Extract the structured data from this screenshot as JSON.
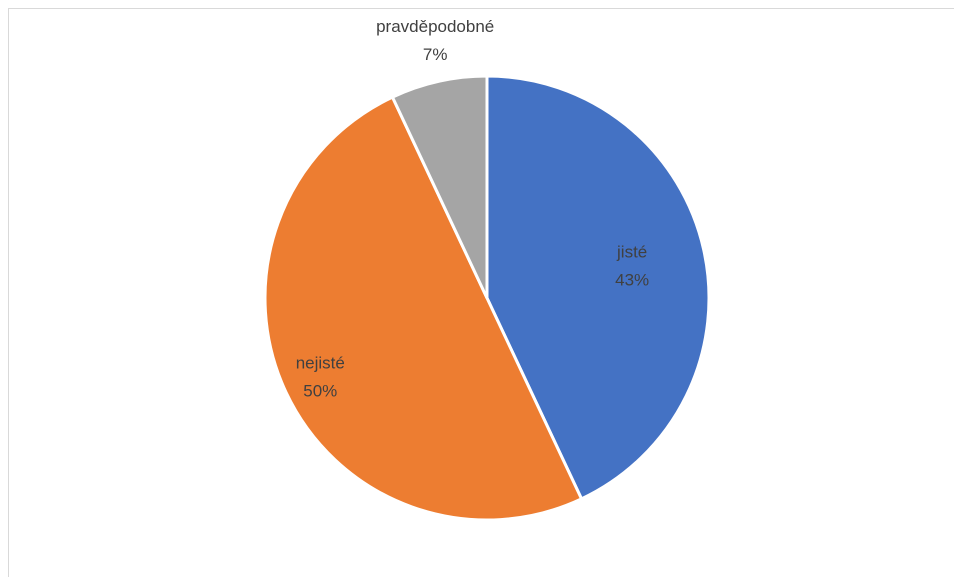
{
  "chart_data": {
    "type": "pie",
    "title": "",
    "slices": [
      {
        "label": "jisté",
        "percent_label": "43%",
        "value": 43,
        "color": "#4472C4"
      },
      {
        "label": "nejisté",
        "percent_label": "50%",
        "value": 50,
        "color": "#ED7D31"
      },
      {
        "label": "pravděpodobné",
        "percent_label": "7%",
        "value": 7,
        "color": "#A5A5A5"
      }
    ],
    "start_angle": "12 o'clock",
    "direction": "clockwise",
    "legend": "none",
    "data_labels": "category and percentage"
  }
}
